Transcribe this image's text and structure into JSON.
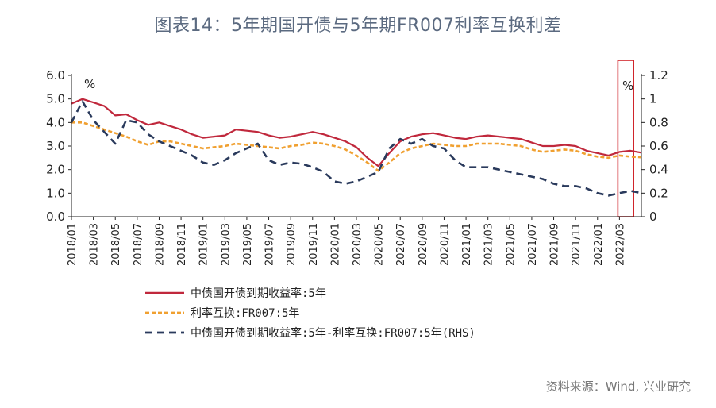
{
  "title": "图表14：5年期国开债与5年期FR007利率互换利差",
  "source": "资料来源：Wind, 兴业研究",
  "chart_data": {
    "type": "line",
    "left_unit": "%",
    "right_unit": "%",
    "ylim_left": [
      0,
      6
    ],
    "yticks_left": [
      "6.0",
      "5.0",
      "4.0",
      "3.0",
      "2.0",
      "1.0",
      "0.0"
    ],
    "ylim_right": [
      0,
      1.2
    ],
    "yticks_right": [
      "1.2",
      "1",
      "0.8",
      "0.6",
      "0.4",
      "0.2",
      "0"
    ],
    "xlim": [
      "2018-01",
      "2022-05"
    ],
    "xticks": [
      "2018/01",
      "2018/03",
      "2018/05",
      "2018/07",
      "2018/09",
      "2018/11",
      "2019/01",
      "2019/03",
      "2019/05",
      "2019/07",
      "2019/09",
      "2019/11",
      "2020/01",
      "2020/03",
      "2020/05",
      "2020/07",
      "2020/09",
      "2020/11",
      "2021/01",
      "2021/03",
      "2021/05",
      "2021/07",
      "2021/09",
      "2021/11",
      "2022/01",
      "2022/03"
    ],
    "highlight": {
      "from": "2022-03",
      "to": "2022-04"
    },
    "series": [
      {
        "name": "中债国开债到期收益率:5年",
        "axis": "left",
        "color": "#c0283c",
        "style": "solid",
        "x": [
          "2018-01",
          "2018-02",
          "2018-03",
          "2018-04",
          "2018-05",
          "2018-06",
          "2018-07",
          "2018-08",
          "2018-09",
          "2018-10",
          "2018-11",
          "2018-12",
          "2019-01",
          "2019-02",
          "2019-03",
          "2019-04",
          "2019-05",
          "2019-06",
          "2019-07",
          "2019-08",
          "2019-09",
          "2019-10",
          "2019-11",
          "2019-12",
          "2020-01",
          "2020-02",
          "2020-03",
          "2020-04",
          "2020-05",
          "2020-06",
          "2020-07",
          "2020-08",
          "2020-09",
          "2020-10",
          "2020-11",
          "2020-12",
          "2021-01",
          "2021-02",
          "2021-03",
          "2021-04",
          "2021-05",
          "2021-06",
          "2021-07",
          "2021-08",
          "2021-09",
          "2021-10",
          "2021-11",
          "2021-12",
          "2022-01",
          "2022-02",
          "2022-03",
          "2022-04",
          "2022-05"
        ],
        "values": [
          4.8,
          5.0,
          4.85,
          4.7,
          4.3,
          4.35,
          4.1,
          3.9,
          4.0,
          3.85,
          3.7,
          3.5,
          3.35,
          3.4,
          3.45,
          3.7,
          3.65,
          3.6,
          3.45,
          3.35,
          3.4,
          3.5,
          3.6,
          3.5,
          3.35,
          3.2,
          2.95,
          2.5,
          2.15,
          2.7,
          3.2,
          3.4,
          3.5,
          3.55,
          3.45,
          3.35,
          3.3,
          3.4,
          3.45,
          3.4,
          3.35,
          3.3,
          3.15,
          3.0,
          3.0,
          3.05,
          3.0,
          2.8,
          2.7,
          2.6,
          2.75,
          2.8,
          2.72
        ]
      },
      {
        "name": "利率互换:FR007:5年",
        "axis": "left",
        "color": "#f0a030",
        "style": "dash",
        "x": [
          "2018-01",
          "2018-02",
          "2018-03",
          "2018-04",
          "2018-05",
          "2018-06",
          "2018-07",
          "2018-08",
          "2018-09",
          "2018-10",
          "2018-11",
          "2018-12",
          "2019-01",
          "2019-02",
          "2019-03",
          "2019-04",
          "2019-05",
          "2019-06",
          "2019-07",
          "2019-08",
          "2019-09",
          "2019-10",
          "2019-11",
          "2019-12",
          "2020-01",
          "2020-02",
          "2020-03",
          "2020-04",
          "2020-05",
          "2020-06",
          "2020-07",
          "2020-08",
          "2020-09",
          "2020-10",
          "2020-11",
          "2020-12",
          "2021-01",
          "2021-02",
          "2021-03",
          "2021-04",
          "2021-05",
          "2021-06",
          "2021-07",
          "2021-08",
          "2021-09",
          "2021-10",
          "2021-11",
          "2021-12",
          "2022-01",
          "2022-02",
          "2022-03",
          "2022-04",
          "2022-05"
        ],
        "values": [
          4.0,
          4.0,
          3.85,
          3.7,
          3.55,
          3.4,
          3.2,
          3.05,
          3.2,
          3.2,
          3.1,
          3.0,
          2.9,
          2.95,
          3.0,
          3.1,
          3.05,
          3.0,
          2.95,
          2.9,
          3.0,
          3.05,
          3.15,
          3.1,
          3.0,
          2.85,
          2.6,
          2.3,
          1.95,
          2.3,
          2.7,
          2.9,
          3.0,
          3.1,
          3.05,
          3.0,
          3.0,
          3.1,
          3.1,
          3.1,
          3.05,
          3.0,
          2.85,
          2.75,
          2.8,
          2.85,
          2.8,
          2.65,
          2.55,
          2.5,
          2.6,
          2.55,
          2.52
        ]
      },
      {
        "name": "中债国开债到期收益率:5年-利率互换:FR007:5年(RHS)",
        "axis": "right",
        "color": "#2a3a5c",
        "style": "longdash",
        "x": [
          "2018-01",
          "2018-02",
          "2018-03",
          "2018-04",
          "2018-05",
          "2018-06",
          "2018-07",
          "2018-08",
          "2018-09",
          "2018-10",
          "2018-11",
          "2018-12",
          "2019-01",
          "2019-02",
          "2019-03",
          "2019-04",
          "2019-05",
          "2019-06",
          "2019-07",
          "2019-08",
          "2019-09",
          "2019-10",
          "2019-11",
          "2019-12",
          "2020-01",
          "2020-02",
          "2020-03",
          "2020-04",
          "2020-05",
          "2020-06",
          "2020-07",
          "2020-08",
          "2020-09",
          "2020-10",
          "2020-11",
          "2020-12",
          "2021-01",
          "2021-02",
          "2021-03",
          "2021-04",
          "2021-05",
          "2021-06",
          "2021-07",
          "2021-08",
          "2021-09",
          "2021-10",
          "2021-11",
          "2021-12",
          "2022-01",
          "2022-02",
          "2022-03",
          "2022-04",
          "2022-05"
        ],
        "values": [
          0.8,
          0.98,
          0.82,
          0.72,
          0.62,
          0.82,
          0.8,
          0.7,
          0.64,
          0.6,
          0.56,
          0.52,
          0.46,
          0.44,
          0.48,
          0.54,
          0.58,
          0.62,
          0.48,
          0.44,
          0.46,
          0.45,
          0.42,
          0.38,
          0.3,
          0.28,
          0.3,
          0.34,
          0.38,
          0.58,
          0.66,
          0.62,
          0.66,
          0.6,
          0.58,
          0.48,
          0.42,
          0.42,
          0.42,
          0.4,
          0.38,
          0.36,
          0.34,
          0.32,
          0.28,
          0.26,
          0.26,
          0.24,
          0.2,
          0.18,
          0.2,
          0.22,
          0.2
        ]
      }
    ]
  }
}
